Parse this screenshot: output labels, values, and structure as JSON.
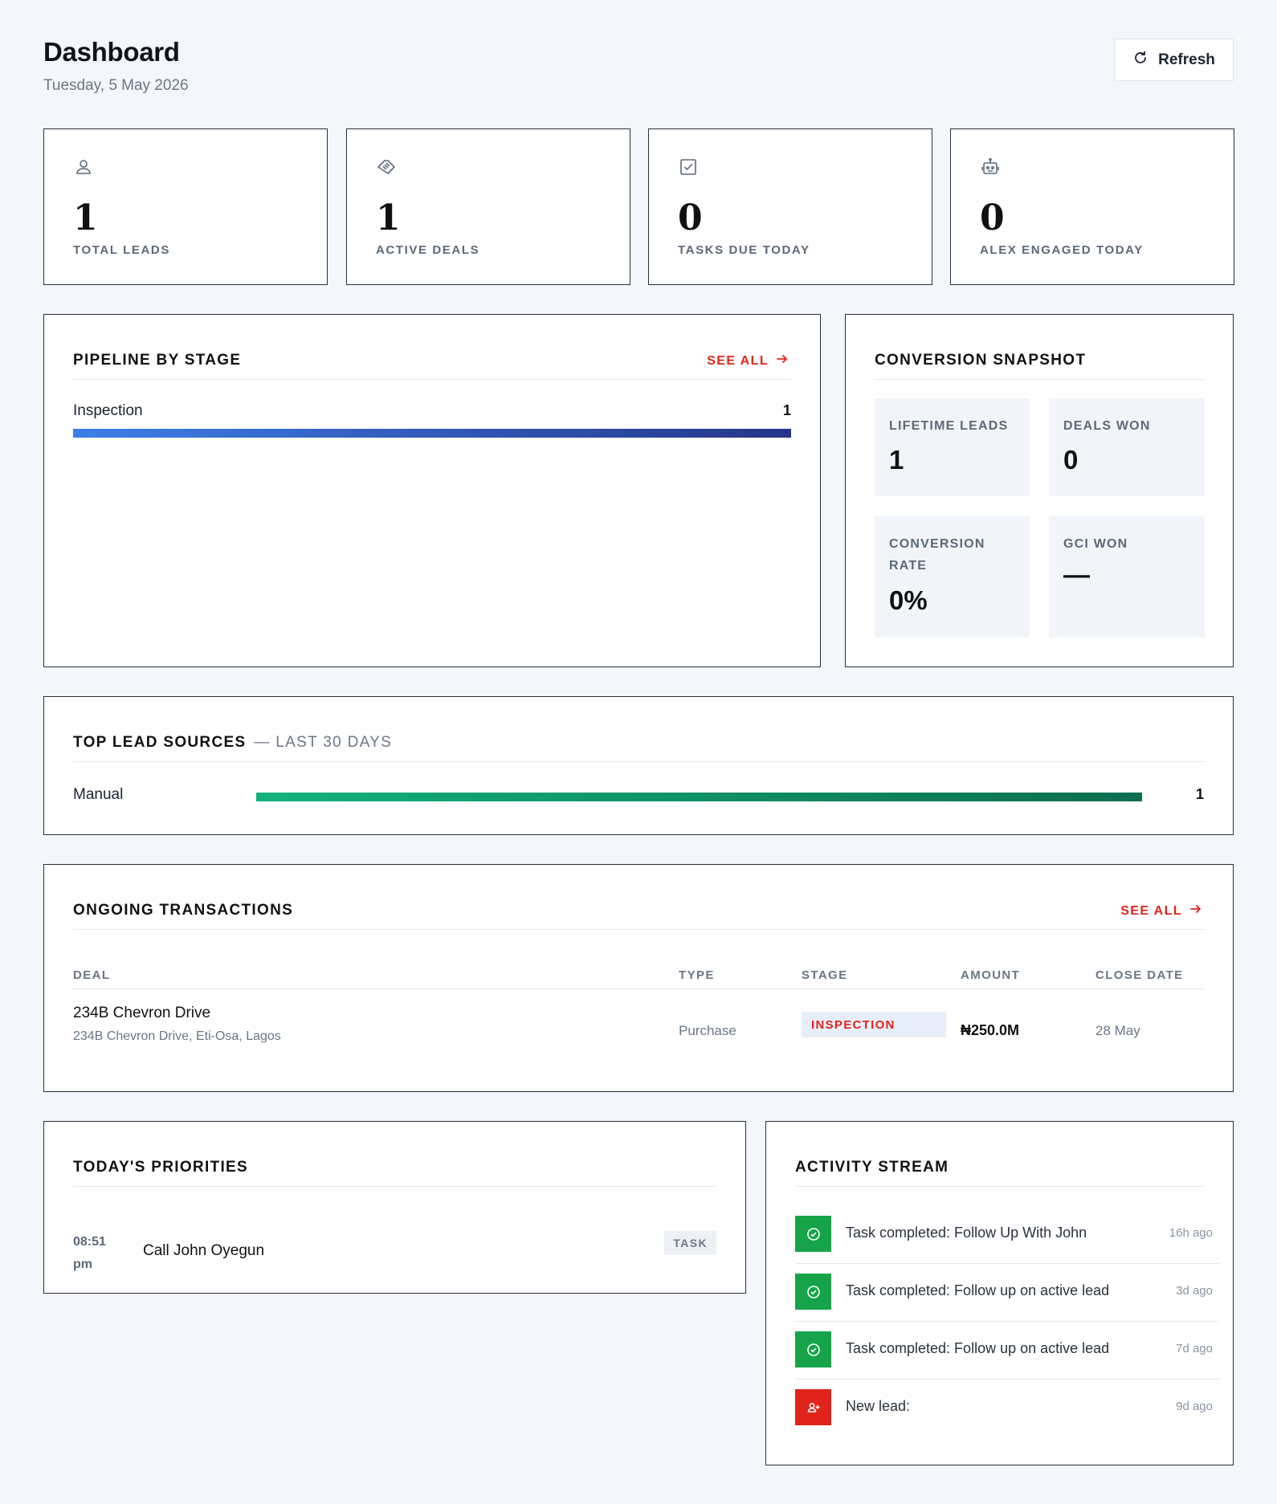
{
  "header": {
    "title": "Dashboard",
    "date": "Tuesday, 5 May 2026",
    "refresh_label": "Refresh"
  },
  "stats": [
    {
      "icon": "person-icon",
      "value": "1",
      "label": "TOTAL LEADS"
    },
    {
      "icon": "handshake-icon",
      "value": "1",
      "label": "ACTIVE DEALS"
    },
    {
      "icon": "checkbox-icon",
      "value": "0",
      "label": "TASKS DUE TODAY"
    },
    {
      "icon": "robot-icon",
      "value": "0",
      "label": "ALEX ENGAGED TODAY"
    }
  ],
  "pipeline": {
    "title": "PIPELINE BY STAGE",
    "see_all": "SEE ALL",
    "stages": [
      {
        "label": "Inspection",
        "count": "1",
        "fraction": 1.0
      }
    ]
  },
  "conversion": {
    "title": "CONVERSION SNAPSHOT",
    "kpis": [
      {
        "label": "LIFETIME LEADS",
        "value": "1"
      },
      {
        "label": "DEALS WON",
        "value": "0"
      },
      {
        "label": "CONVERSION RATE",
        "value": "0%"
      },
      {
        "label": "GCI WON",
        "value": "—"
      }
    ]
  },
  "lead_sources": {
    "title": "TOP LEAD SOURCES",
    "subtitle": "— LAST 30 DAYS",
    "sources": [
      {
        "label": "Manual",
        "count": "1",
        "fraction": 1.0
      }
    ]
  },
  "transactions": {
    "title": "ONGOING TRANSACTIONS",
    "see_all": "SEE ALL",
    "columns": [
      "DEAL",
      "TYPE",
      "STAGE",
      "AMOUNT",
      "CLOSE DATE"
    ],
    "rows": [
      {
        "deal": "234B Chevron Drive",
        "address": "234B Chevron Drive, Eti-Osa, Lagos",
        "type": "Purchase",
        "stage": "INSPECTION",
        "amount": "₦250.0M",
        "close_date": "28 May"
      }
    ]
  },
  "priorities": {
    "title": "TODAY'S PRIORITIES",
    "items": [
      {
        "time": "08:51 pm",
        "title": "Call John Oyegun",
        "badge": "TASK"
      }
    ]
  },
  "activity": {
    "title": "ACTIVITY STREAM",
    "items": [
      {
        "icon": "check-circle-icon",
        "color": "#17a34a",
        "text": "Task completed: Follow Up With John",
        "ago": "16h ago"
      },
      {
        "icon": "check-circle-icon",
        "color": "#17a34a",
        "text": "Task completed: Follow up on active lead",
        "ago": "3d ago"
      },
      {
        "icon": "check-circle-icon",
        "color": "#17a34a",
        "text": "Task completed: Follow up on active lead",
        "ago": "7d ago"
      },
      {
        "icon": "user-plus-icon",
        "color": "#e0241b",
        "text": "New lead:",
        "ago": "9d ago"
      }
    ]
  },
  "colors": {
    "accent_red": "#e0241b",
    "success_green": "#17a34a",
    "pipeline_bar": "#3d7fe8",
    "source_bar": "#13b27b"
  }
}
